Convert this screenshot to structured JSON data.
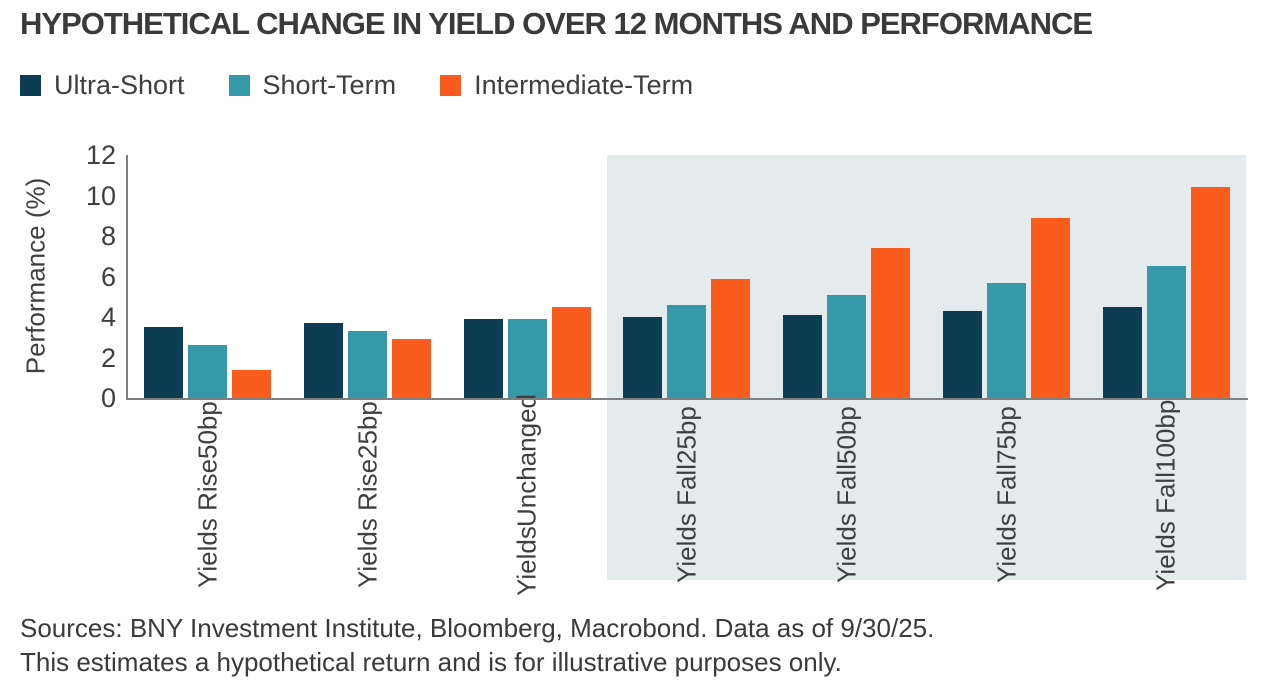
{
  "title": "HYPOTHETICAL CHANGE IN YIELD OVER 12 MONTHS AND PERFORMANCE",
  "legend": {
    "items": [
      {
        "label": "Ultra-Short",
        "color": "#0d3d55"
      },
      {
        "label": "Short-Term",
        "color": "#3599a9"
      },
      {
        "label": "Intermediate-Term",
        "color": "#f95c1d"
      }
    ]
  },
  "chart_data": {
    "type": "bar",
    "title": "HYPOTHETICAL CHANGE IN YIELD OVER 12 MONTHS AND PERFORMANCE",
    "ylabel": "Performance (%)",
    "xlabel": "",
    "ylim": [
      0,
      12
    ],
    "yticks": [
      0,
      2,
      4,
      6,
      8,
      10,
      12
    ],
    "grid": false,
    "legend_position": "top-left",
    "categories": [
      "Yields Rise 50bp",
      "Yields Rise 25bp",
      "Yields Unchanged",
      "Yields Fall 25bp",
      "Yields Fall 50bp",
      "Yields Fall 75bp",
      "Yields Fall 100bp"
    ],
    "category_lines": [
      [
        "Yields Rise",
        "50bp"
      ],
      [
        "Yields Rise",
        "25bp"
      ],
      [
        "Yields",
        "Unchanged"
      ],
      [
        "Yields Fall",
        "25bp"
      ],
      [
        "Yields Fall",
        "50bp"
      ],
      [
        "Yields Fall",
        "75bp"
      ],
      [
        "Yields Fall",
        "100bp"
      ]
    ],
    "series": [
      {
        "name": "Ultra-Short",
        "color": "#0d3d55",
        "values": [
          3.5,
          3.7,
          3.9,
          4.0,
          4.1,
          4.3,
          4.5
        ]
      },
      {
        "name": "Short-Term",
        "color": "#3599a9",
        "values": [
          2.6,
          3.3,
          3.9,
          4.6,
          5.1,
          5.7,
          6.5
        ]
      },
      {
        "name": "Intermediate-Term",
        "color": "#f95c1d",
        "values": [
          1.4,
          2.9,
          4.5,
          5.9,
          7.4,
          8.9,
          10.4
        ]
      }
    ],
    "highlight": {
      "from_category_index": 3,
      "to_category_index": 6,
      "color": "#e5eaec"
    },
    "axis_color": "#7f7f7f"
  },
  "footer": {
    "line1": "Sources: BNY Investment Institute, Bloomberg, Macrobond. Data as of 9/30/25.",
    "line2": "This estimates a hypothetical return and is for illustrative purposes only."
  }
}
